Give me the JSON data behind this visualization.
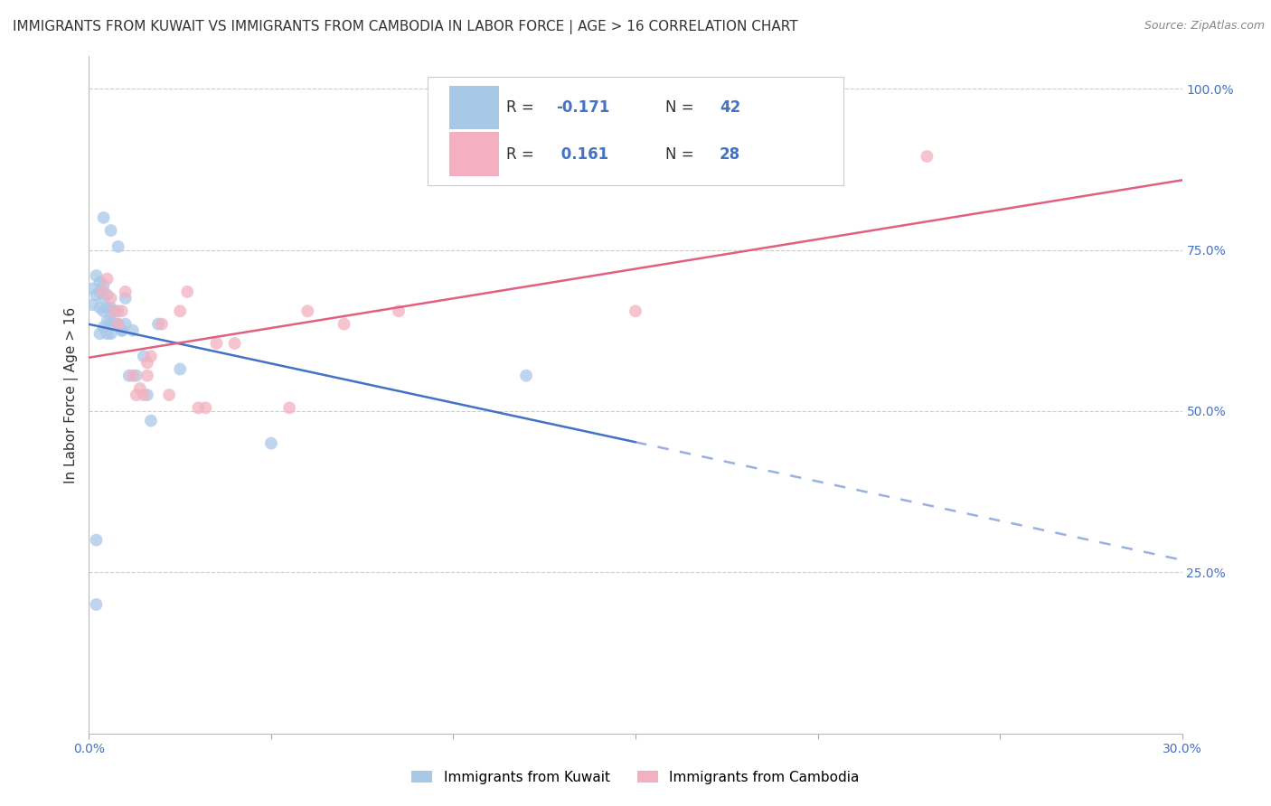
{
  "title": "IMMIGRANTS FROM KUWAIT VS IMMIGRANTS FROM CAMBODIA IN LABOR FORCE | AGE > 16 CORRELATION CHART",
  "source": "Source: ZipAtlas.com",
  "ylabel": "In Labor Force | Age > 16",
  "xlim": [
    0.0,
    0.3
  ],
  "ylim": [
    0.0,
    1.05
  ],
  "R_kuwait": -0.171,
  "N_kuwait": 42,
  "R_cambodia": 0.161,
  "N_cambodia": 28,
  "kuwait_color": "#a8c8e8",
  "cambodia_color": "#f4b0c0",
  "kuwait_line_color": "#4472c4",
  "cambodia_line_color": "#e06080",
  "legend_color": "#4472c4",
  "kuwait_x": [
    0.001,
    0.001,
    0.002,
    0.002,
    0.002,
    0.003,
    0.003,
    0.003,
    0.003,
    0.004,
    0.004,
    0.004,
    0.004,
    0.004,
    0.005,
    0.005,
    0.005,
    0.005,
    0.006,
    0.006,
    0.006,
    0.006,
    0.007,
    0.007,
    0.008,
    0.008,
    0.008,
    0.009,
    0.009,
    0.01,
    0.01,
    0.011,
    0.012,
    0.013,
    0.015,
    0.016,
    0.017,
    0.019,
    0.025,
    0.05,
    0.12,
    0.002
  ],
  "kuwait_y": [
    0.665,
    0.69,
    0.71,
    0.68,
    0.3,
    0.62,
    0.66,
    0.685,
    0.7,
    0.63,
    0.655,
    0.675,
    0.695,
    0.8,
    0.62,
    0.64,
    0.66,
    0.68,
    0.62,
    0.64,
    0.66,
    0.78,
    0.635,
    0.655,
    0.635,
    0.655,
    0.755,
    0.625,
    0.625,
    0.635,
    0.675,
    0.555,
    0.625,
    0.555,
    0.585,
    0.525,
    0.485,
    0.635,
    0.565,
    0.45,
    0.555,
    0.2
  ],
  "cambodia_x": [
    0.004,
    0.005,
    0.006,
    0.007,
    0.008,
    0.009,
    0.01,
    0.012,
    0.013,
    0.014,
    0.015,
    0.016,
    0.016,
    0.017,
    0.02,
    0.022,
    0.025,
    0.027,
    0.03,
    0.032,
    0.035,
    0.04,
    0.055,
    0.06,
    0.07,
    0.085,
    0.23,
    0.15
  ],
  "cambodia_y": [
    0.685,
    0.705,
    0.675,
    0.655,
    0.635,
    0.655,
    0.685,
    0.555,
    0.525,
    0.535,
    0.525,
    0.555,
    0.575,
    0.585,
    0.635,
    0.525,
    0.655,
    0.685,
    0.505,
    0.505,
    0.605,
    0.605,
    0.505,
    0.655,
    0.635,
    0.655,
    0.895,
    0.655
  ],
  "background_color": "#ffffff",
  "grid_color": "#cccccc",
  "title_fontsize": 11,
  "tick_fontsize": 10,
  "ylabel_fontsize": 11,
  "scatter_size": 100,
  "scatter_alpha": 0.75,
  "line_width": 1.8
}
